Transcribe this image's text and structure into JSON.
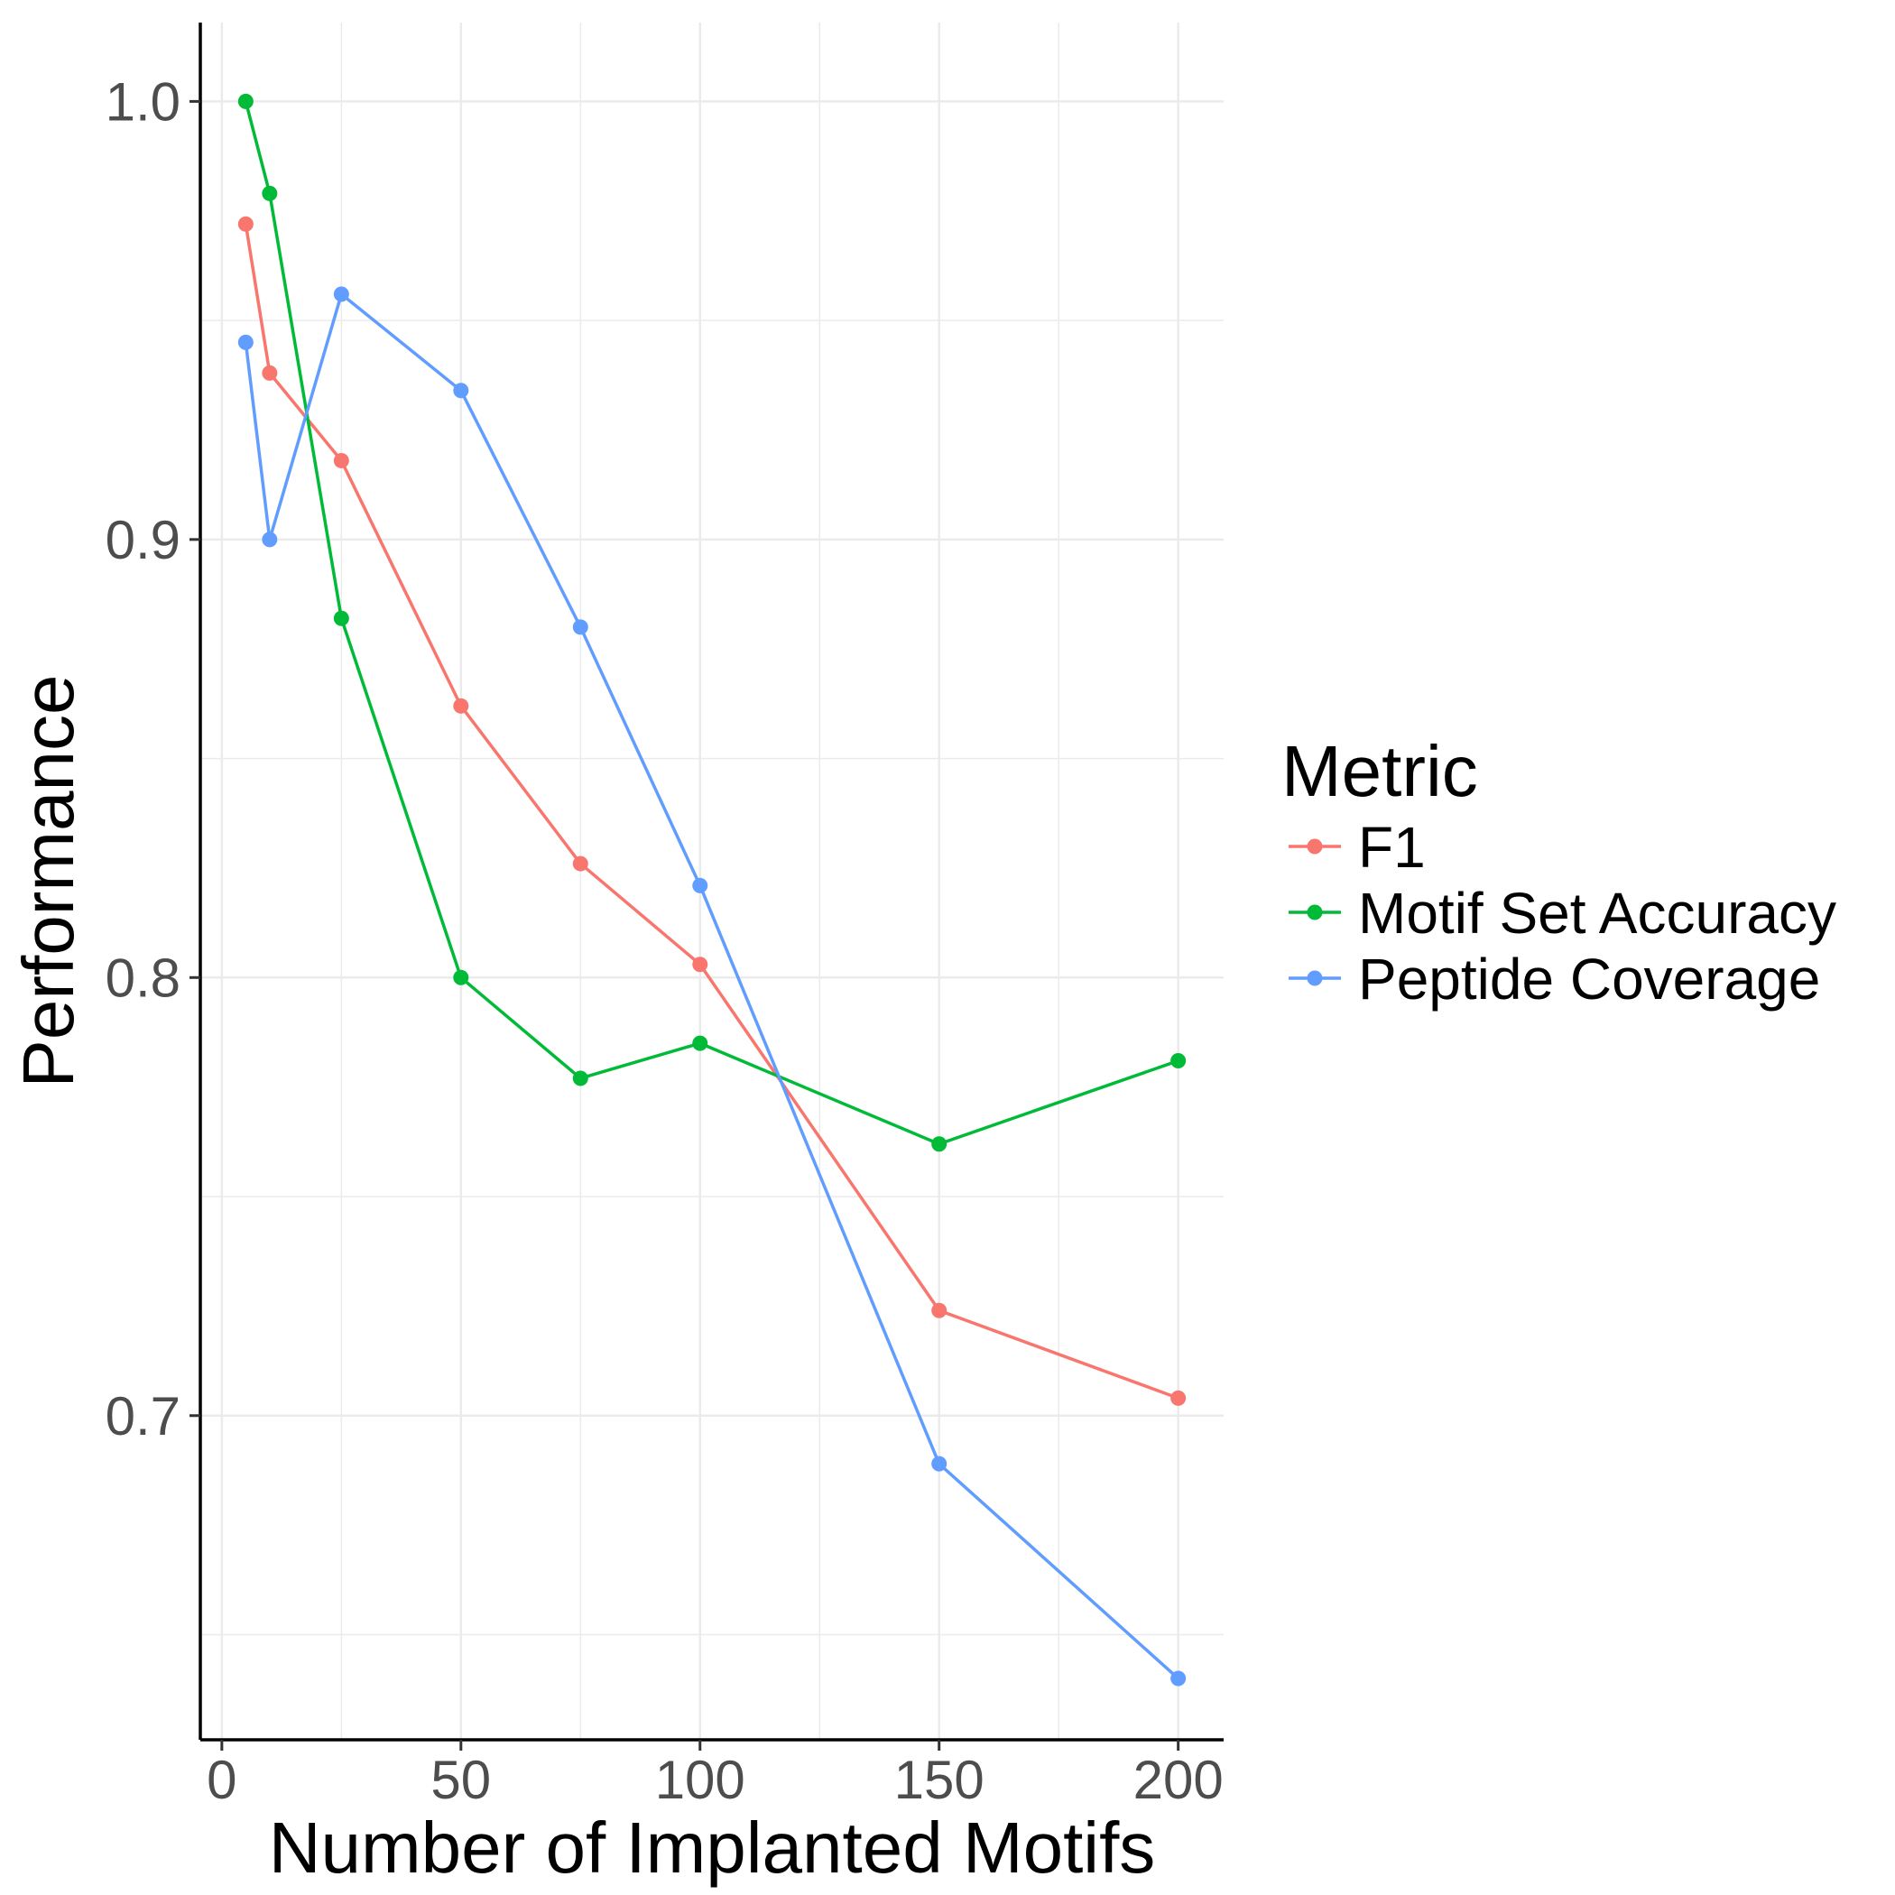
{
  "chart_data": {
    "type": "line",
    "xlabel": "Number of Implanted Motifs",
    "ylabel": "Performance",
    "xlim": [
      -4.5,
      209.5
    ],
    "ylim": [
      0.626,
      1.018
    ],
    "x_ticks": [
      0,
      50,
      100,
      150,
      200
    ],
    "x_tick_labels": [
      "0",
      "50",
      "100",
      "150",
      "200"
    ],
    "y_ticks": [
      0.7,
      0.8,
      0.9,
      1.0
    ],
    "y_tick_labels": [
      "0.7",
      "0.8",
      "0.9",
      "1.0"
    ],
    "y_minor_grid": [
      0.65,
      0.75,
      0.85,
      0.95
    ],
    "x_minor_grid": [
      25,
      75,
      125,
      175
    ],
    "grid": true,
    "legend": {
      "title": "Metric",
      "position": "right"
    },
    "x": [
      5,
      10,
      25,
      50,
      75,
      100,
      150,
      200
    ],
    "series": [
      {
        "name": "F1",
        "color": "#F8766D",
        "values": [
          0.972,
          0.938,
          0.918,
          0.862,
          0.826,
          0.803,
          0.724,
          0.704
        ]
      },
      {
        "name": "Motif Set Accuracy",
        "color": "#00BA38",
        "values": [
          1.0,
          0.979,
          0.882,
          0.8,
          0.777,
          0.785,
          0.762,
          0.781
        ]
      },
      {
        "name": "Peptide Coverage",
        "color": "#619CFF",
        "values": [
          0.945,
          0.9,
          0.956,
          0.934,
          0.88,
          0.821,
          0.689,
          0.64
        ]
      }
    ]
  }
}
